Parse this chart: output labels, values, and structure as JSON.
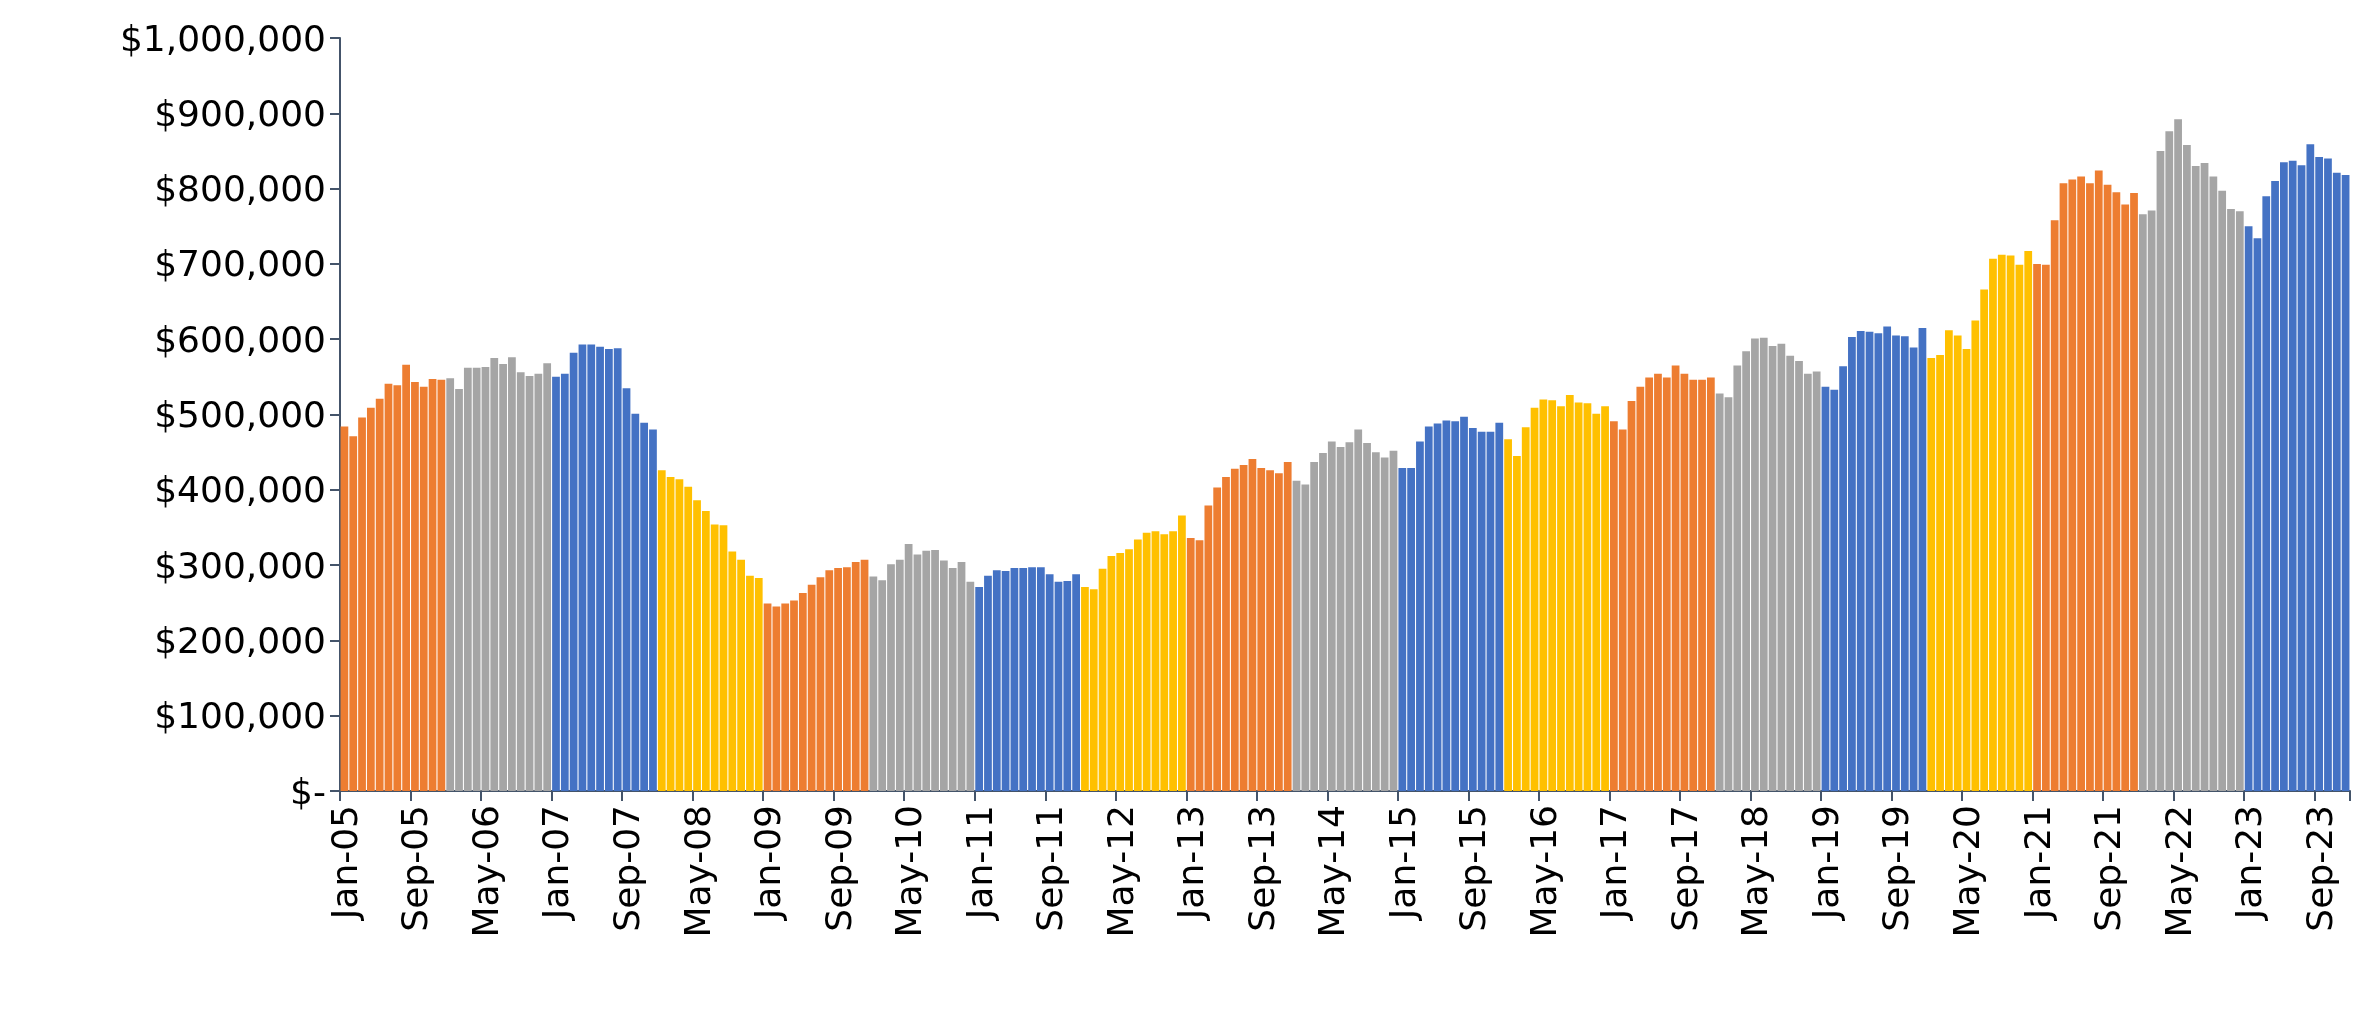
{
  "chart_data": {
    "type": "bar",
    "categories": [
      "Jan-05",
      null,
      null,
      null,
      null,
      null,
      null,
      null,
      "Sep-05",
      null,
      null,
      null,
      null,
      null,
      null,
      null,
      "May-06",
      null,
      null,
      null,
      null,
      null,
      null,
      null,
      "Jan-07",
      null,
      null,
      null,
      null,
      null,
      null,
      null,
      "Sep-07",
      null,
      null,
      null,
      null,
      null,
      null,
      null,
      "May-08",
      null,
      null,
      null,
      null,
      null,
      null,
      null,
      "Jan-09",
      null,
      null,
      null,
      null,
      null,
      null,
      null,
      "Sep-09",
      null,
      null,
      null,
      null,
      null,
      null,
      null,
      "May-10",
      null,
      null,
      null,
      null,
      null,
      null,
      null,
      "Jan-11",
      null,
      null,
      null,
      null,
      null,
      null,
      null,
      "Sep-11",
      null,
      null,
      null,
      null,
      null,
      null,
      null,
      "May-12",
      null,
      null,
      null,
      null,
      null,
      null,
      null,
      "Jan-13",
      null,
      null,
      null,
      null,
      null,
      null,
      null,
      "Sep-13",
      null,
      null,
      null,
      null,
      null,
      null,
      null,
      "May-14",
      null,
      null,
      null,
      null,
      null,
      null,
      null,
      "Jan-15",
      null,
      null,
      null,
      null,
      null,
      null,
      null,
      "Sep-15",
      null,
      null,
      null,
      null,
      null,
      null,
      null,
      "May-16",
      null,
      null,
      null,
      null,
      null,
      null,
      null,
      "Jan-17",
      null,
      null,
      null,
      null,
      null,
      null,
      null,
      "Sep-17",
      null,
      null,
      null,
      null,
      null,
      null,
      null,
      "May-18",
      null,
      null,
      null,
      null,
      null,
      null,
      null,
      "Jan-19",
      null,
      null,
      null,
      null,
      null,
      null,
      null,
      "Sep-19",
      null,
      null,
      null,
      null,
      null,
      null,
      null,
      "May-20",
      null,
      null,
      null,
      null,
      null,
      null,
      null,
      "Jan-21",
      null,
      null,
      null,
      null,
      null,
      null,
      null,
      "Sep-21",
      null,
      null,
      null,
      null,
      null,
      null,
      null,
      "May-22",
      null,
      null,
      null,
      null,
      null,
      null,
      null,
      "Jan-23",
      null,
      null,
      null,
      null,
      null,
      null,
      null,
      "Sep-23",
      null,
      null,
      null
    ],
    "values": [
      484000,
      471000,
      496000,
      509000,
      521000,
      541000,
      539000,
      566000,
      543000,
      537000,
      547000,
      546000,
      548000,
      534000,
      562000,
      562000,
      563000,
      575000,
      567000,
      576000,
      556000,
      551000,
      554000,
      568000,
      550000,
      554000,
      582000,
      593000,
      593000,
      590000,
      587000,
      588000,
      535000,
      501000,
      489000,
      480000,
      426000,
      417000,
      414000,
      404000,
      386000,
      372000,
      354000,
      353000,
      318000,
      307000,
      286000,
      283000,
      249000,
      245000,
      249000,
      253000,
      263000,
      274000,
      284000,
      293000,
      296000,
      297000,
      304000,
      307000,
      285000,
      280000,
      301000,
      307000,
      328000,
      314000,
      319000,
      320000,
      306000,
      296000,
      304000,
      278000,
      271000,
      286000,
      293000,
      292000,
      296000,
      296000,
      297000,
      297000,
      288000,
      278000,
      279000,
      288000,
      271000,
      268000,
      295000,
      312000,
      316000,
      321000,
      334000,
      343000,
      345000,
      341000,
      345000,
      366000,
      336000,
      333000,
      379000,
      403000,
      417000,
      428000,
      433000,
      441000,
      429000,
      426000,
      422000,
      437000,
      412000,
      407000,
      437000,
      449000,
      464000,
      457000,
      463000,
      480000,
      462000,
      450000,
      443000,
      452000,
      429000,
      429000,
      464000,
      484000,
      488000,
      492000,
      491000,
      497000,
      482000,
      477000,
      477000,
      489000,
      467000,
      445000,
      483000,
      509000,
      520000,
      519000,
      511000,
      526000,
      516000,
      515000,
      501000,
      511000,
      491000,
      480000,
      518000,
      537000,
      549000,
      554000,
      549000,
      565000,
      554000,
      546000,
      546000,
      549000,
      528000,
      523000,
      565000,
      584000,
      601000,
      602000,
      591000,
      594000,
      578000,
      571000,
      554000,
      557000,
      537000,
      533000,
      564000,
      603000,
      611000,
      610000,
      608000,
      617000,
      605000,
      604000,
      589000,
      615000,
      575000,
      579000,
      612000,
      605000,
      587000,
      625000,
      666000,
      707000,
      712000,
      711000,
      699000,
      717000,
      700000,
      699000,
      758000,
      807000,
      812000,
      816000,
      807000,
      824000,
      805000,
      795000,
      779000,
      794000,
      766000,
      771000,
      850000,
      876000,
      892000,
      858000,
      830000,
      834000,
      816000,
      797000,
      773000,
      770000,
      750000,
      734000,
      790000,
      810000,
      835000,
      837000,
      831000,
      859000,
      842000,
      840000,
      821000,
      818000
    ],
    "colors": [
      "#ed7d31",
      "#ed7d31",
      "#ed7d31",
      "#ed7d31",
      "#ed7d31",
      "#ed7d31",
      "#ed7d31",
      "#ed7d31",
      "#ed7d31",
      "#ed7d31",
      "#ed7d31",
      "#ed7d31",
      "#a5a5a5",
      "#a5a5a5",
      "#a5a5a5",
      "#a5a5a5",
      "#a5a5a5",
      "#a5a5a5",
      "#a5a5a5",
      "#a5a5a5",
      "#a5a5a5",
      "#a5a5a5",
      "#a5a5a5",
      "#a5a5a5",
      "#4472c4",
      "#4472c4",
      "#4472c4",
      "#4472c4",
      "#4472c4",
      "#4472c4",
      "#4472c4",
      "#4472c4",
      "#4472c4",
      "#4472c4",
      "#4472c4",
      "#4472c4",
      "#ffc000",
      "#ffc000",
      "#ffc000",
      "#ffc000",
      "#ffc000",
      "#ffc000",
      "#ffc000",
      "#ffc000",
      "#ffc000",
      "#ffc000",
      "#ffc000",
      "#ffc000",
      "#ed7d31",
      "#ed7d31",
      "#ed7d31",
      "#ed7d31",
      "#ed7d31",
      "#ed7d31",
      "#ed7d31",
      "#ed7d31",
      "#ed7d31",
      "#ed7d31",
      "#ed7d31",
      "#ed7d31",
      "#a5a5a5",
      "#a5a5a5",
      "#a5a5a5",
      "#a5a5a5",
      "#a5a5a5",
      "#a5a5a5",
      "#a5a5a5",
      "#a5a5a5",
      "#a5a5a5",
      "#a5a5a5",
      "#a5a5a5",
      "#a5a5a5",
      "#4472c4",
      "#4472c4",
      "#4472c4",
      "#4472c4",
      "#4472c4",
      "#4472c4",
      "#4472c4",
      "#4472c4",
      "#4472c4",
      "#4472c4",
      "#4472c4",
      "#4472c4",
      "#ffc000",
      "#ffc000",
      "#ffc000",
      "#ffc000",
      "#ffc000",
      "#ffc000",
      "#ffc000",
      "#ffc000",
      "#ffc000",
      "#ffc000",
      "#ffc000",
      "#ffc000",
      "#ed7d31",
      "#ed7d31",
      "#ed7d31",
      "#ed7d31",
      "#ed7d31",
      "#ed7d31",
      "#ed7d31",
      "#ed7d31",
      "#ed7d31",
      "#ed7d31",
      "#ed7d31",
      "#ed7d31",
      "#a5a5a5",
      "#a5a5a5",
      "#a5a5a5",
      "#a5a5a5",
      "#a5a5a5",
      "#a5a5a5",
      "#a5a5a5",
      "#a5a5a5",
      "#a5a5a5",
      "#a5a5a5",
      "#a5a5a5",
      "#a5a5a5",
      "#4472c4",
      "#4472c4",
      "#4472c4",
      "#4472c4",
      "#4472c4",
      "#4472c4",
      "#4472c4",
      "#4472c4",
      "#4472c4",
      "#4472c4",
      "#4472c4",
      "#4472c4",
      "#ffc000",
      "#ffc000",
      "#ffc000",
      "#ffc000",
      "#ffc000",
      "#ffc000",
      "#ffc000",
      "#ffc000",
      "#ffc000",
      "#ffc000",
      "#ffc000",
      "#ffc000",
      "#ed7d31",
      "#ed7d31",
      "#ed7d31",
      "#ed7d31",
      "#ed7d31",
      "#ed7d31",
      "#ed7d31",
      "#ed7d31",
      "#ed7d31",
      "#ed7d31",
      "#ed7d31",
      "#ed7d31",
      "#a5a5a5",
      "#a5a5a5",
      "#a5a5a5",
      "#a5a5a5",
      "#a5a5a5",
      "#a5a5a5",
      "#a5a5a5",
      "#a5a5a5",
      "#a5a5a5",
      "#a5a5a5",
      "#a5a5a5",
      "#a5a5a5",
      "#4472c4",
      "#4472c4",
      "#4472c4",
      "#4472c4",
      "#4472c4",
      "#4472c4",
      "#4472c4",
      "#4472c4",
      "#4472c4",
      "#4472c4",
      "#4472c4",
      "#4472c4",
      "#ffc000",
      "#ffc000",
      "#ffc000",
      "#ffc000",
      "#ffc000",
      "#ffc000",
      "#ffc000",
      "#ffc000",
      "#ffc000",
      "#ffc000",
      "#ffc000",
      "#ffc000",
      "#ed7d31",
      "#ed7d31",
      "#ed7d31",
      "#ed7d31",
      "#ed7d31",
      "#ed7d31",
      "#ed7d31",
      "#ed7d31",
      "#ed7d31",
      "#ed7d31",
      "#ed7d31",
      "#ed7d31",
      "#a5a5a5",
      "#a5a5a5",
      "#a5a5a5",
      "#a5a5a5",
      "#a5a5a5",
      "#a5a5a5",
      "#a5a5a5",
      "#a5a5a5",
      "#a5a5a5",
      "#a5a5a5",
      "#a5a5a5",
      "#a5a5a5",
      "#4472c4",
      "#4472c4",
      "#4472c4",
      "#4472c4",
      "#4472c4",
      "#4472c4",
      "#4472c4",
      "#4472c4",
      "#4472c4",
      "#4472c4",
      "#4472c4",
      "#4472c4"
    ],
    "ylim": [
      0,
      1000000
    ],
    "yticks": [
      {
        "value": 0,
        "label": "$-"
      },
      {
        "value": 100000,
        "label": "$100,000"
      },
      {
        "value": 200000,
        "label": "$200,000"
      },
      {
        "value": 300000,
        "label": "$300,000"
      },
      {
        "value": 400000,
        "label": "$400,000"
      },
      {
        "value": 500000,
        "label": "$500,000"
      },
      {
        "value": 600000,
        "label": "$600,000"
      },
      {
        "value": 700000,
        "label": "$700,000"
      },
      {
        "value": 800000,
        "label": "$800,000"
      },
      {
        "value": 900000,
        "label": "$900,000"
      },
      {
        "value": 1000000,
        "label": "$1,000,000"
      }
    ],
    "grid": false
  }
}
